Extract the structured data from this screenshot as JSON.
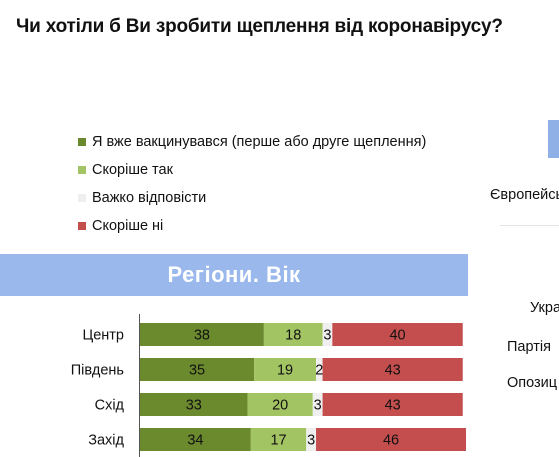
{
  "title": "Чи хотіли б Ви зробити щеплення від коронавірусу?",
  "section_title": "Регіони. Вік",
  "legend": [
    {
      "label": "Я вже вакцинувався (перше або друге щеплення)",
      "color": "#6b8a2e"
    },
    {
      "label": "Скоріше так",
      "color": "#a3c462"
    },
    {
      "label": "Важко відповісти",
      "color": "#efefef"
    },
    {
      "label": "Скоріше ні",
      "color": "#c44e4e"
    }
  ],
  "right_partial_labels": [
    "Європейсь",
    "Укра",
    "Партія",
    "Опозиц"
  ],
  "chart_data": {
    "type": "bar",
    "orientation": "horizontal",
    "stacked": true,
    "categories": [
      "Центр",
      "Південь",
      "Схід",
      "Захід"
    ],
    "series": [
      {
        "name": "Я вже вакцинувався (перше або друге щеплення)",
        "values": [
          38,
          35,
          33,
          34
        ],
        "color": "#6b8a2e"
      },
      {
        "name": "Скоріше так",
        "values": [
          18,
          19,
          20,
          17
        ],
        "color": "#a3c462"
      },
      {
        "name": "Важко відповісти",
        "values": [
          3,
          2,
          3,
          3
        ],
        "color": "#efefef"
      },
      {
        "name": "Скоріше ні",
        "values": [
          40,
          43,
          43,
          46
        ],
        "color": "#c44e4e"
      }
    ],
    "title": "Регіони. Вік",
    "xlim": [
      0,
      100
    ],
    "grid": false,
    "legend_position": "top-left"
  }
}
